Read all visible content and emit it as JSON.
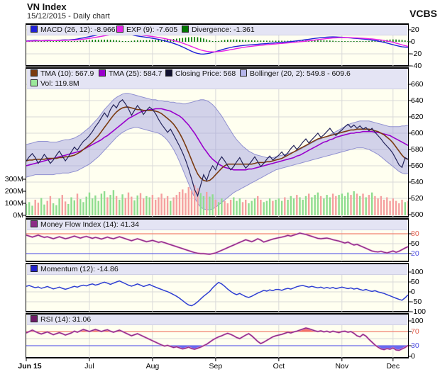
{
  "header": {
    "title": "VN Index",
    "subtitle": "15/12/2015 - Daily chart",
    "brand": "VCBS"
  },
  "colors": {
    "panel_bg": "#fffff0",
    "legend_bg": "#e4e4f4",
    "grid": "#d9d9d9",
    "macd_line": "#1f1fd8",
    "exp_line": "#e820e8",
    "divergence_bar": "#007700",
    "tma10": "#7a3a10",
    "tma25": "#9900cc",
    "close": "#23235a",
    "bollinger_fill": "#9b9be1",
    "bollinger_edge": "#9090d0",
    "vol_up": "#8fdd8f",
    "vol_down": "#f5a0a0",
    "mfi_line": "#8c2b86",
    "momentum_line": "#2f3fd3",
    "rsi_line": "#8c2b86",
    "overbought": "#f08070",
    "oversold": "#6a6ae8",
    "rsi_fill_high": "#f4716a",
    "rsi_fill_low": "#6a6af0",
    "label_red": "#e0604e",
    "label_blue": "#5050e0"
  },
  "panels": {
    "macd": {
      "legend": [
        {
          "color": "#1f1fd8",
          "label": "MACD (26, 12): -8.966"
        },
        {
          "color": "#e820e8",
          "label": "EXP (9): -7.605"
        },
        {
          "color": "#007700",
          "label": "Divergence: -1.361"
        }
      ],
      "yticks": [
        {
          "v": 20,
          "t": "20",
          "c": "#000"
        },
        {
          "v": 0,
          "t": "0",
          "c": "#000"
        },
        {
          "v": -20,
          "t": "-20",
          "c": "#000"
        },
        {
          "v": -40,
          "t": "-40",
          "c": "#000"
        }
      ]
    },
    "main": {
      "legend_row1": [
        {
          "color": "#7a3a10",
          "label": "TMA (10): 567.9"
        },
        {
          "color": "#9900cc",
          "label": "TMA (25): 584.7"
        },
        {
          "color": "#101030",
          "label": "Closing Price: 568"
        },
        {
          "color": "#b4b4ea",
          "label": "Bollinger (20, 2): 549.8 - 609.6"
        }
      ],
      "legend_row2": [
        {
          "color": "#9be89b",
          "label": "Vol: 119.8M"
        }
      ],
      "price_ticks": [
        "660",
        "640",
        "620",
        "600",
        "580",
        "560",
        "540",
        "520",
        "500"
      ],
      "vol_ticks": [
        "300M",
        "200M",
        "100M",
        "0M"
      ]
    },
    "mfi": {
      "legend": [
        {
          "color": "#8c2b86",
          "label": "Money Flow Index (14): 41.34"
        }
      ],
      "yticks": [
        {
          "v": 80,
          "t": "80",
          "c": "#e0604e"
        },
        {
          "v": 50,
          "t": "50",
          "c": "#000"
        },
        {
          "v": 20,
          "t": "20",
          "c": "#5050e0"
        }
      ]
    },
    "momentum": {
      "legend": [
        {
          "color": "#2222cc",
          "label": "Momentum (12): -14.86"
        }
      ],
      "yticks": [
        {
          "v": 100,
          "t": "100",
          "c": "#000"
        },
        {
          "v": 50,
          "t": "50",
          "c": "#000"
        },
        {
          "v": 0,
          "t": "0",
          "c": "#000"
        },
        {
          "v": -50,
          "t": "-50",
          "c": "#000"
        },
        {
          "v": -100,
          "t": "-100",
          "c": "#000"
        }
      ]
    },
    "rsi": {
      "legend": [
        {
          "color": "#6e1b68",
          "label": "RSI (14): 31.06"
        }
      ],
      "yticks": [
        {
          "v": 100,
          "t": "100",
          "c": "#000"
        },
        {
          "v": 70,
          "t": "70",
          "c": "#e0604e"
        },
        {
          "v": 30,
          "t": "30",
          "c": "#5050e0"
        },
        {
          "v": 0,
          "t": "0",
          "c": "#000"
        }
      ]
    }
  },
  "x_axis": {
    "start_label": "Jun 15",
    "month_labels": [
      "Jul",
      "Aug",
      "Sep",
      "Oct",
      "Nov",
      "Dec"
    ]
  },
  "chart_data": {
    "type": "line",
    "title": "VN Index daily chart with MACD, Bollinger, Volume, MFI, Momentum, RSI",
    "x_range": "Jun 2015 - 15 Dec 2015",
    "n": 128,
    "month_tick_indices": [
      21,
      42,
      63,
      84,
      105,
      122
    ],
    "price_ylim": [
      500,
      660
    ],
    "macd_ylim": [
      -40,
      30
    ],
    "mfi_lines": [
      80,
      20
    ],
    "rsi_lines": [
      70,
      30
    ],
    "close": [
      566,
      571,
      575,
      570,
      563,
      568,
      574,
      569,
      563,
      567,
      573,
      578,
      572,
      566,
      571,
      577,
      583,
      579,
      585,
      590,
      593,
      597,
      602,
      608,
      613,
      619,
      625,
      620,
      629,
      635,
      631,
      638,
      641,
      636,
      630,
      622,
      628,
      634,
      629,
      623,
      628,
      632,
      629,
      624,
      617,
      611,
      606,
      601,
      605,
      598,
      591,
      584,
      576,
      567,
      556,
      544,
      531,
      523,
      536,
      549,
      542,
      553,
      560,
      555,
      565,
      571,
      566,
      560,
      555,
      559,
      565,
      570,
      563,
      557,
      561,
      566,
      571,
      565,
      559,
      563,
      568,
      572,
      567,
      570,
      573,
      577,
      572,
      576,
      581,
      585,
      580,
      584,
      589,
      593,
      588,
      592,
      596,
      600,
      595,
      598,
      602,
      606,
      601,
      597,
      601,
      604,
      608,
      611,
      607,
      610,
      606,
      609,
      605,
      607,
      603,
      606,
      601,
      597,
      593,
      588,
      584,
      580,
      575,
      568,
      561,
      558,
      570,
      568
    ],
    "tma10": [
      566,
      567,
      567,
      568,
      568,
      568,
      568,
      569,
      569,
      569,
      569,
      570,
      570,
      571,
      571,
      572,
      573,
      575,
      577,
      580,
      583,
      586,
      589,
      593,
      597,
      602,
      607,
      612,
      617,
      622,
      626,
      629,
      631,
      632,
      632,
      631,
      630,
      629,
      629,
      628,
      628,
      628,
      628,
      627,
      626,
      624,
      621,
      618,
      615,
      611,
      606,
      600,
      593,
      585,
      576,
      567,
      558,
      550,
      545,
      542,
      541,
      542,
      545,
      549,
      553,
      557,
      560,
      562,
      562,
      562,
      562,
      562,
      562,
      562,
      562,
      562,
      563,
      564,
      564,
      564,
      565,
      565,
      566,
      567,
      568,
      569,
      571,
      573,
      575,
      577,
      579,
      581,
      583,
      585,
      587,
      589,
      591,
      593,
      594,
      595,
      596,
      597,
      598,
      599,
      600,
      601,
      602,
      603,
      604,
      604,
      605,
      605,
      605,
      605,
      605,
      604,
      603,
      602,
      600,
      598,
      595,
      592,
      588,
      583,
      578,
      573,
      569,
      568
    ],
    "tma25": [
      560,
      561,
      562,
      563,
      564,
      565,
      566,
      567,
      568,
      569,
      570,
      571,
      572,
      573,
      574,
      575,
      576,
      577,
      578,
      580,
      582,
      584,
      586,
      588,
      590,
      592,
      595,
      597,
      600,
      603,
      606,
      609,
      612,
      615,
      618,
      620,
      622,
      624,
      626,
      627,
      628,
      629,
      629,
      630,
      630,
      630,
      629,
      628,
      627,
      625,
      623,
      621,
      618,
      614,
      610,
      605,
      600,
      594,
      588,
      582,
      577,
      572,
      568,
      565,
      562,
      560,
      558,
      557,
      556,
      555,
      555,
      555,
      555,
      555,
      556,
      556,
      557,
      558,
      559,
      560,
      561,
      562,
      563,
      564,
      565,
      566,
      567,
      568,
      569,
      570,
      572,
      573,
      575,
      577,
      579,
      581,
      583,
      585,
      587,
      589,
      590,
      592,
      593,
      595,
      596,
      597,
      598,
      599,
      600,
      600,
      601,
      601,
      602,
      602,
      602,
      602,
      601,
      601,
      600,
      599,
      598,
      597,
      595,
      593,
      591,
      589,
      587,
      585
    ],
    "boll_upper": [
      586,
      587,
      588,
      589,
      590,
      590,
      590,
      590,
      589,
      589,
      589,
      590,
      591,
      592,
      592,
      593,
      594,
      596,
      598,
      601,
      604,
      607,
      611,
      615,
      619,
      624,
      629,
      633,
      637,
      641,
      644,
      646,
      648,
      649,
      649,
      648,
      647,
      646,
      645,
      644,
      643,
      642,
      641,
      641,
      640,
      640,
      639,
      639,
      638,
      638,
      637,
      637,
      636,
      636,
      637,
      638,
      639,
      640,
      641,
      641,
      640,
      638,
      635,
      631,
      626,
      621,
      615,
      609,
      603,
      597,
      592,
      588,
      584,
      581,
      578,
      576,
      574,
      573,
      572,
      571,
      570,
      570,
      570,
      571,
      572,
      573,
      574,
      575,
      576,
      577,
      578,
      580,
      582,
      584,
      586,
      588,
      590,
      592,
      593,
      595,
      596,
      598,
      600,
      602,
      604,
      606,
      608,
      610,
      612,
      613,
      614,
      615,
      615,
      615,
      615,
      614,
      613,
      612,
      611,
      610,
      609,
      608,
      608,
      608,
      608,
      609,
      609,
      610
    ],
    "boll_lower": [
      546,
      547,
      548,
      549,
      549,
      549,
      549,
      549,
      549,
      549,
      550,
      550,
      551,
      551,
      551,
      552,
      553,
      554,
      556,
      558,
      560,
      562,
      565,
      568,
      571,
      575,
      579,
      583,
      587,
      591,
      595,
      598,
      601,
      603,
      605,
      606,
      607,
      607,
      606,
      605,
      604,
      603,
      602,
      601,
      600,
      598,
      595,
      591,
      586,
      580,
      573,
      565,
      556,
      547,
      538,
      529,
      521,
      514,
      509,
      507,
      506,
      506,
      507,
      509,
      512,
      515,
      518,
      521,
      524,
      527,
      529,
      531,
      533,
      535,
      537,
      539,
      541,
      543,
      545,
      547,
      549,
      551,
      553,
      555,
      556,
      557,
      558,
      559,
      560,
      561,
      562,
      563,
      564,
      565,
      566,
      567,
      568,
      569,
      570,
      571,
      572,
      573,
      574,
      575,
      576,
      577,
      578,
      579,
      580,
      581,
      582,
      582,
      582,
      581,
      580,
      578,
      576,
      574,
      571,
      568,
      565,
      562,
      559,
      556,
      553,
      551,
      550,
      550
    ],
    "volume_m": [
      95,
      110,
      80,
      130,
      105,
      145,
      90,
      120,
      160,
      100,
      85,
      140,
      170,
      115,
      95,
      150,
      125,
      180,
      135,
      110,
      155,
      190,
      140,
      165,
      120,
      180,
      200,
      150,
      170,
      210,
      160,
      130,
      175,
      145,
      190,
      155,
      125,
      165,
      185,
      140,
      160,
      150,
      170,
      130,
      150,
      180,
      140,
      160,
      120,
      150,
      170,
      195,
      215,
      185,
      235,
      205,
      250,
      225,
      185,
      160,
      195,
      155,
      175,
      130,
      110,
      140,
      120,
      100,
      130,
      150,
      120,
      140,
      110,
      130,
      100,
      120,
      140,
      160,
      130,
      110,
      120,
      140,
      120,
      130,
      140,
      120,
      150,
      130,
      160,
      140,
      170,
      150,
      130,
      160,
      180,
      150,
      170,
      190,
      160,
      140,
      170,
      150,
      180,
      160,
      170,
      180,
      160,
      190,
      170,
      200,
      180,
      160,
      180,
      150,
      170,
      190,
      160,
      140,
      160,
      130,
      150,
      120,
      140,
      120,
      100,
      130,
      110,
      120
    ],
    "macd": [
      1.2,
      1.6,
      2.0,
      2.3,
      2.1,
      1.9,
      2.2,
      2.5,
      2.3,
      2.0,
      2.2,
      2.6,
      3.0,
      3.2,
      3.1,
      3.4,
      3.9,
      4.6,
      5.6,
      6.6,
      7.6,
      8.6,
      9.6,
      10.6,
      11.6,
      12.6,
      13.5,
      14.3,
      14.9,
      15.4,
      15.6,
      15.4,
      14.8,
      13.9,
      12.8,
      11.6,
      10.5,
      9.6,
      8.8,
      8.1,
      7.4,
      6.7,
      5.9,
      5.0,
      4.0,
      2.9,
      1.7,
      0.4,
      -1.0,
      -2.6,
      -4.4,
      -6.4,
      -8.6,
      -11.0,
      -13.4,
      -15.8,
      -17.9,
      -19.4,
      -20.2,
      -20.3,
      -19.8,
      -18.9,
      -17.7,
      -16.3,
      -14.8,
      -13.3,
      -11.9,
      -10.6,
      -9.4,
      -8.4,
      -7.5,
      -6.8,
      -6.2,
      -5.7,
      -5.3,
      -4.9,
      -4.5,
      -4.1,
      -3.7,
      -3.3,
      -2.9,
      -2.5,
      -2.1,
      -1.7,
      -1.3,
      -0.9,
      -0.5,
      -0.1,
      0.4,
      0.9,
      1.5,
      2.1,
      2.8,
      3.5,
      4.2,
      4.9,
      5.6,
      6.2,
      6.8,
      7.3,
      7.7,
      8.0,
      8.1,
      8.0,
      7.8,
      7.5,
      7.1,
      6.7,
      6.3,
      5.9,
      5.5,
      5.1,
      4.7,
      4.2,
      3.6,
      2.9,
      2.1,
      1.2,
      0.2,
      -0.9,
      -2.1,
      -3.4,
      -4.8,
      -6.1,
      -7.3,
      -8.3,
      -8.8,
      -9.0
    ],
    "macd_signal": [
      0.9,
      1.1,
      1.3,
      1.5,
      1.6,
      1.7,
      1.8,
      1.9,
      2.0,
      2.0,
      2.0,
      2.1,
      2.3,
      2.5,
      2.6,
      2.8,
      3.0,
      3.3,
      3.8,
      4.4,
      5.0,
      5.7,
      6.5,
      7.3,
      8.2,
      9.1,
      10.0,
      10.8,
      11.6,
      12.4,
      13.0,
      13.5,
      13.8,
      13.8,
      13.6,
      13.2,
      12.7,
      12.1,
      11.4,
      10.7,
      10.1,
      9.4,
      8.7,
      8.0,
      7.2,
      6.3,
      5.4,
      4.4,
      3.3,
      2.1,
      0.8,
      -0.6,
      -2.2,
      -4.0,
      -5.9,
      -7.9,
      -9.9,
      -11.8,
      -13.5,
      -14.8,
      -15.8,
      -16.4,
      -16.7,
      -16.6,
      -16.2,
      -15.6,
      -14.9,
      -14.0,
      -13.1,
      -12.2,
      -11.2,
      -10.3,
      -9.5,
      -8.7,
      -8.0,
      -7.4,
      -6.8,
      -6.3,
      -5.8,
      -5.3,
      -4.8,
      -4.3,
      -3.9,
      -3.5,
      -3.1,
      -2.7,
      -2.2,
      -1.8,
      -1.4,
      -0.9,
      -0.4,
      0.1,
      0.6,
      1.2,
      1.8,
      2.4,
      3.0,
      3.6,
      4.2,
      4.8,
      5.4,
      5.9,
      6.3,
      6.6,
      6.8,
      6.9,
      7.0,
      6.9,
      6.8,
      6.6,
      6.4,
      6.1,
      5.8,
      5.5,
      5.1,
      4.7,
      4.2,
      3.6,
      2.9,
      2.1,
      1.3,
      0.4,
      -0.8,
      -2.2,
      -3.7,
      -5.1,
      -6.4,
      -7.6
    ],
    "mfi": [
      76,
      73,
      70,
      73,
      76,
      72,
      69,
      71,
      68,
      65,
      68,
      71,
      68,
      65,
      67,
      70,
      73,
      70,
      67,
      70,
      72,
      69,
      66,
      69,
      67,
      64,
      67,
      70,
      67,
      65,
      68,
      71,
      68,
      65,
      62,
      59,
      62,
      65,
      62,
      59,
      56,
      58,
      60,
      57,
      54,
      56,
      53,
      50,
      47,
      44,
      41,
      38,
      35,
      32,
      29,
      26,
      23,
      21,
      20,
      20,
      19,
      18,
      20,
      22,
      26,
      30,
      34,
      38,
      42,
      46,
      50,
      54,
      58,
      62,
      59,
      56,
      60,
      65,
      61,
      55,
      58,
      61,
      64,
      66,
      68,
      70,
      72,
      75,
      73,
      76,
      79,
      82,
      80,
      78,
      75,
      72,
      69,
      66,
      65,
      66,
      67,
      65,
      62,
      60,
      58,
      55,
      52,
      55,
      50,
      46,
      48,
      44,
      40,
      36,
      32,
      28,
      26,
      25,
      27,
      24,
      22,
      25,
      28,
      24,
      27,
      32,
      37,
      41
    ],
    "momentum": [
      28,
      32,
      26,
      21,
      25,
      18,
      22,
      27,
      21,
      15,
      19,
      24,
      18,
      13,
      17,
      23,
      28,
      24,
      30,
      34,
      30,
      36,
      40,
      34,
      38,
      44,
      49,
      44,
      38,
      44,
      50,
      55,
      48,
      41,
      34,
      29,
      34,
      40,
      34,
      27,
      32,
      37,
      30,
      24,
      18,
      12,
      6,
      1,
      -6,
      -14,
      -22,
      -32,
      -44,
      -56,
      -66,
      -70,
      -62,
      -50,
      -36,
      -22,
      -10,
      2,
      20,
      35,
      48,
      40,
      28,
      14,
      2,
      -8,
      -14,
      -8,
      -16,
      -24,
      -28,
      -22,
      -14,
      -6,
      0,
      8,
      4,
      10,
      6,
      12,
      12,
      8,
      14,
      18,
      14,
      20,
      26,
      30,
      32,
      28,
      24,
      28,
      24,
      20,
      24,
      18,
      22,
      18,
      22,
      16,
      20,
      24,
      20,
      16,
      20,
      14,
      18,
      12,
      8,
      12,
      6,
      2,
      6,
      0,
      -4,
      -8,
      -14,
      -20,
      -26,
      -32,
      -38,
      -42,
      -30,
      -15
    ],
    "rsi": [
      66,
      70,
      74,
      70,
      66,
      63,
      66,
      69,
      65,
      61,
      64,
      67,
      64,
      60,
      63,
      66,
      71,
      68,
      72,
      76,
      73,
      70,
      73,
      76,
      73,
      70,
      73,
      75,
      71,
      68,
      71,
      74,
      70,
      66,
      62,
      58,
      61,
      64,
      60,
      56,
      52,
      48,
      44,
      40,
      36,
      32,
      29,
      31,
      28,
      25,
      27,
      24,
      21,
      23,
      26,
      22,
      20,
      23,
      26,
      30,
      34,
      40,
      46,
      51,
      55,
      58,
      62,
      65,
      62,
      58,
      53,
      50,
      55,
      60,
      64,
      58,
      50,
      42,
      36,
      40,
      45,
      50,
      55,
      58,
      60,
      62,
      65,
      68,
      66,
      69,
      71,
      74,
      77,
      80,
      78,
      75,
      72,
      70,
      72,
      69,
      71,
      68,
      71,
      69,
      67,
      70,
      71,
      68,
      70,
      65,
      58,
      55,
      62,
      57,
      48,
      40,
      32,
      26,
      21,
      19,
      22,
      20,
      24,
      18,
      17,
      21,
      25,
      31
    ]
  }
}
